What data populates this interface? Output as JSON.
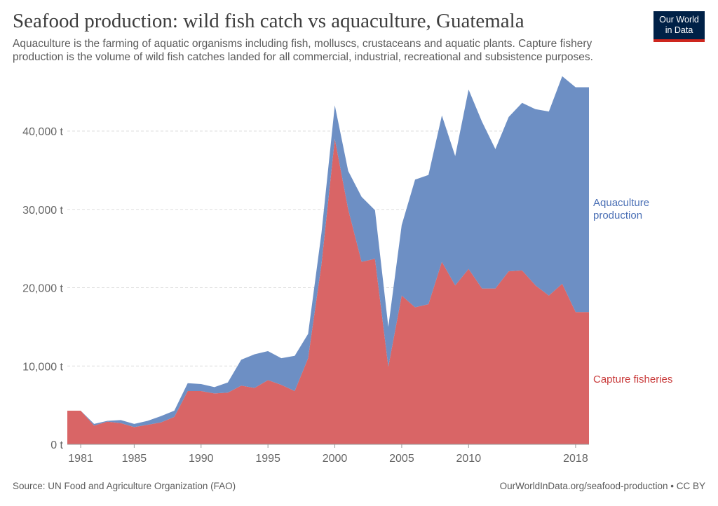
{
  "header": {
    "title": "Seafood production: wild fish catch vs aquaculture, Guatemala",
    "subtitle": "Aquaculture is the farming of aquatic organisms including fish, molluscs, crustaceans and aquatic plants. Capture fishery production is the volume of wild fish catches landed for all commercial, industrial, recreational and subsistence purposes.",
    "logo_line1": "Our World",
    "logo_line2": "in Data"
  },
  "footer": {
    "source": "Source: UN Food and Agriculture Organization (FAO)",
    "credit": "OurWorldInData.org/seafood-production • CC BY"
  },
  "colors": {
    "capture": "#d96566",
    "aquaculture": "#6d8fc4",
    "aquaculture_label": "#4a6fb5",
    "capture_label": "#c93b3b",
    "grid": "#dddddd",
    "axis": "#999999"
  },
  "chart_data": {
    "type": "area",
    "stacked": true,
    "x": [
      1980,
      1981,
      1982,
      1983,
      1984,
      1985,
      1986,
      1987,
      1988,
      1989,
      1990,
      1991,
      1992,
      1993,
      1994,
      1995,
      1996,
      1997,
      1998,
      1999,
      2000,
      2001,
      2002,
      2003,
      2004,
      2005,
      2006,
      2007,
      2008,
      2009,
      2010,
      2011,
      2012,
      2013,
      2014,
      2015,
      2016,
      2017,
      2018,
      2019
    ],
    "series": [
      {
        "name": "Capture fisheries",
        "values": [
          4300,
          4300,
          2400,
          2900,
          2700,
          2200,
          2500,
          2800,
          3500,
          6800,
          6800,
          6500,
          6600,
          7500,
          7200,
          8200,
          7600,
          6800,
          11000,
          23000,
          39000,
          30000,
          23300,
          23700,
          9900,
          19000,
          17500,
          17900,
          23300,
          20300,
          22400,
          19900,
          19900,
          22100,
          22200,
          20300,
          19000,
          20500,
          16900,
          16900
        ],
        "color": "#d96566"
      },
      {
        "name": "Aquaculture production",
        "values": [
          0,
          0,
          200,
          100,
          400,
          400,
          500,
          800,
          800,
          1000,
          900,
          800,
          1300,
          3300,
          4300,
          3700,
          3400,
          4500,
          3100,
          4000,
          4300,
          4900,
          8300,
          6200,
          5100,
          9000,
          16300,
          16500,
          18700,
          16500,
          22900,
          21300,
          17800,
          19700,
          21400,
          22500,
          23500,
          26500,
          28700,
          28700
        ],
        "color": "#6d8fc4"
      }
    ],
    "xlim": [
      1980,
      2019
    ],
    "ylim": [
      0,
      46000
    ],
    "yticks": [
      0,
      10000,
      20000,
      30000,
      40000
    ],
    "ytick_labels": [
      "0 t",
      "10,000 t",
      "20,000 t",
      "30,000 t",
      "40,000 t"
    ],
    "xticks": [
      1981,
      1985,
      1990,
      1995,
      2000,
      2005,
      2010,
      2018
    ],
    "xtick_labels": [
      "1981",
      "1985",
      "1990",
      "1995",
      "2000",
      "2005",
      "2010",
      "2018"
    ],
    "series_labels": {
      "aquaculture_line1": "Aquaculture",
      "aquaculture_line2": "production",
      "capture": "Capture fisheries"
    },
    "grid": true,
    "legend": "right"
  }
}
